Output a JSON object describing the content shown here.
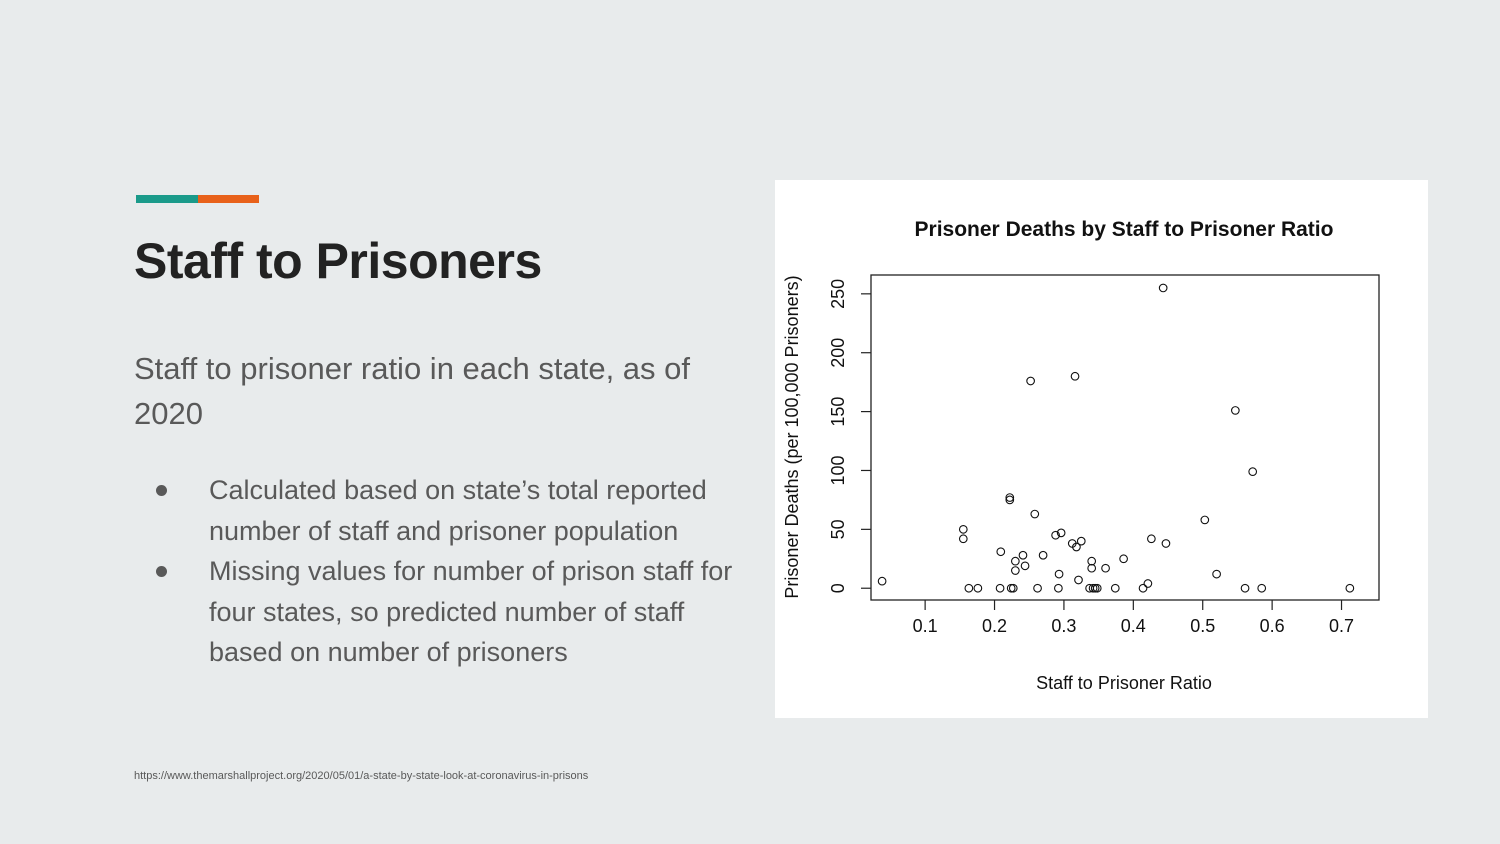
{
  "colors": {
    "background": "#e8ebec",
    "accent_teal": "#1a9a8a",
    "accent_orange": "#e8611a",
    "title_text": "#222222",
    "body_text": "#595959"
  },
  "slide": {
    "title": "Staff to Prisoners",
    "subtitle": "Staff to prisoner ratio in each state, as of 2020",
    "bullets": [
      "Calculated based on state’s total reported number of staff and prisoner population",
      "Missing values for number of prison staff for four states, so predicted number of staff based on number of prisoners"
    ],
    "source": "https://www.themarshallproject.org/2020/05/01/a-state-by-state-look-at-coronavirus-in-prisons"
  },
  "chart_data": {
    "type": "scatter",
    "title": "Prisoner Deaths by Staff to Prisoner Ratio",
    "xlabel": "Staff to Prisoner Ratio",
    "ylabel": "Prisoner Deaths (per 100,000 Prisoners)",
    "xlim": [
      0.022,
      0.754
    ],
    "ylim": [
      -10,
      266
    ],
    "xticks": [
      0.1,
      0.2,
      0.3,
      0.4,
      0.5,
      0.6,
      0.7
    ],
    "xtick_labels": [
      "0.1",
      "0.2",
      "0.3",
      "0.4",
      "0.5",
      "0.6",
      "0.7"
    ],
    "yticks": [
      0,
      50,
      100,
      150,
      200,
      250
    ],
    "ytick_labels": [
      "0",
      "50",
      "100",
      "150",
      "200",
      "250"
    ],
    "grid": false,
    "legend": "none",
    "points": [
      {
        "x": 0.038,
        "y": 6
      },
      {
        "x": 0.155,
        "y": 50
      },
      {
        "x": 0.155,
        "y": 42
      },
      {
        "x": 0.163,
        "y": 0
      },
      {
        "x": 0.176,
        "y": 0
      },
      {
        "x": 0.208,
        "y": 0
      },
      {
        "x": 0.209,
        "y": 31
      },
      {
        "x": 0.222,
        "y": 77
      },
      {
        "x": 0.222,
        "y": 75
      },
      {
        "x": 0.224,
        "y": 0
      },
      {
        "x": 0.227,
        "y": 0
      },
      {
        "x": 0.23,
        "y": 23
      },
      {
        "x": 0.23,
        "y": 15
      },
      {
        "x": 0.241,
        "y": 28
      },
      {
        "x": 0.244,
        "y": 19
      },
      {
        "x": 0.252,
        "y": 176
      },
      {
        "x": 0.258,
        "y": 63
      },
      {
        "x": 0.262,
        "y": 0
      },
      {
        "x": 0.27,
        "y": 28
      },
      {
        "x": 0.288,
        "y": 45
      },
      {
        "x": 0.292,
        "y": 0
      },
      {
        "x": 0.293,
        "y": 12
      },
      {
        "x": 0.296,
        "y": 47
      },
      {
        "x": 0.312,
        "y": 38
      },
      {
        "x": 0.316,
        "y": 180
      },
      {
        "x": 0.318,
        "y": 35
      },
      {
        "x": 0.321,
        "y": 7
      },
      {
        "x": 0.325,
        "y": 40
      },
      {
        "x": 0.337,
        "y": 0
      },
      {
        "x": 0.34,
        "y": 23
      },
      {
        "x": 0.34,
        "y": 17
      },
      {
        "x": 0.342,
        "y": 0
      },
      {
        "x": 0.345,
        "y": 0
      },
      {
        "x": 0.348,
        "y": 0
      },
      {
        "x": 0.36,
        "y": 17
      },
      {
        "x": 0.374,
        "y": 0
      },
      {
        "x": 0.386,
        "y": 25
      },
      {
        "x": 0.414,
        "y": 0
      },
      {
        "x": 0.421,
        "y": 4
      },
      {
        "x": 0.426,
        "y": 42
      },
      {
        "x": 0.443,
        "y": 255
      },
      {
        "x": 0.447,
        "y": 38
      },
      {
        "x": 0.503,
        "y": 58
      },
      {
        "x": 0.52,
        "y": 12
      },
      {
        "x": 0.547,
        "y": 151
      },
      {
        "x": 0.561,
        "y": 0
      },
      {
        "x": 0.572,
        "y": 99
      },
      {
        "x": 0.585,
        "y": 0
      },
      {
        "x": 0.712,
        "y": 0
      }
    ]
  }
}
